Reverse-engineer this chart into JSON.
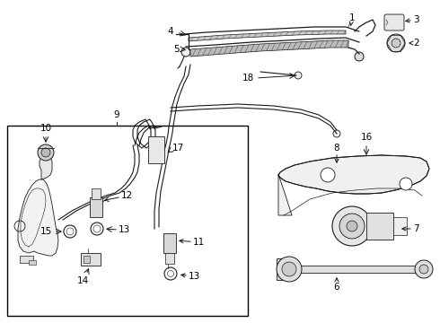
{
  "bg_color": "#ffffff",
  "line_color": "#1a1a1a",
  "text_color": "#000000",
  "fs": 7.5,
  "fs_small": 6.5
}
